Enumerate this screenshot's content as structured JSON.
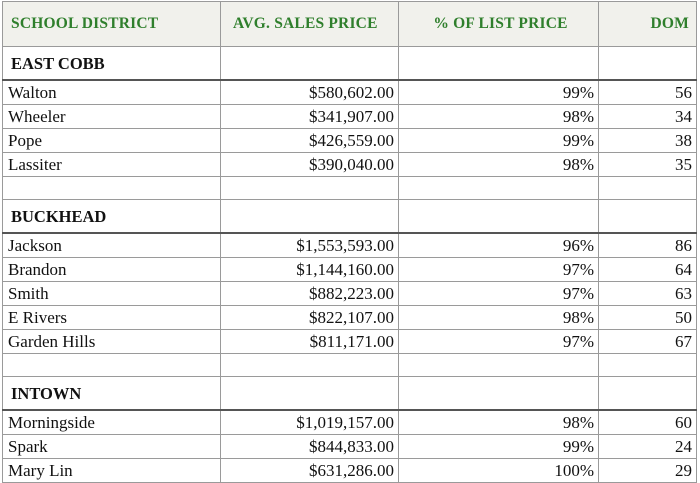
{
  "headers": {
    "district": "SCHOOL DISTRICT",
    "price": "AVG. SALES PRICE",
    "list": "% OF LIST PRICE",
    "dom": "DOM"
  },
  "sections": [
    {
      "name": "EAST COBB",
      "rows": [
        {
          "district": "Walton",
          "price": "$580,602.00",
          "list": "99%",
          "dom": "56"
        },
        {
          "district": "Wheeler",
          "price": "$341,907.00",
          "list": "98%",
          "dom": "34"
        },
        {
          "district": "Pope",
          "price": "$426,559.00",
          "list": "99%",
          "dom": "38"
        },
        {
          "district": "Lassiter",
          "price": "$390,040.00",
          "list": "98%",
          "dom": "35"
        }
      ]
    },
    {
      "name": "BUCKHEAD",
      "rows": [
        {
          "district": "Jackson",
          "price": "$1,553,593.00",
          "list": "96%",
          "dom": "86"
        },
        {
          "district": "Brandon",
          "price": "$1,144,160.00",
          "list": "97%",
          "dom": "64"
        },
        {
          "district": "Smith",
          "price": "$882,223.00",
          "list": "97%",
          "dom": "63"
        },
        {
          "district": "E Rivers",
          "price": "$822,107.00",
          "list": "98%",
          "dom": "50"
        },
        {
          "district": "Garden Hills",
          "price": "$811,171.00",
          "list": "97%",
          "dom": "67"
        }
      ]
    },
    {
      "name": "INTOWN",
      "rows": [
        {
          "district": "Morningside",
          "price": "$1,019,157.00",
          "list": "98%",
          "dom": "60"
        },
        {
          "district": "Spark",
          "price": "$844,833.00",
          "list": "99%",
          "dom": "24"
        },
        {
          "district": "Mary Lin",
          "price": "$631,286.00",
          "list": "100%",
          "dom": "29"
        }
      ]
    }
  ],
  "colors": {
    "header_text": "#2f7f2c",
    "header_background": "#f1f1ec",
    "grid_lines": "#9a9a9a"
  }
}
